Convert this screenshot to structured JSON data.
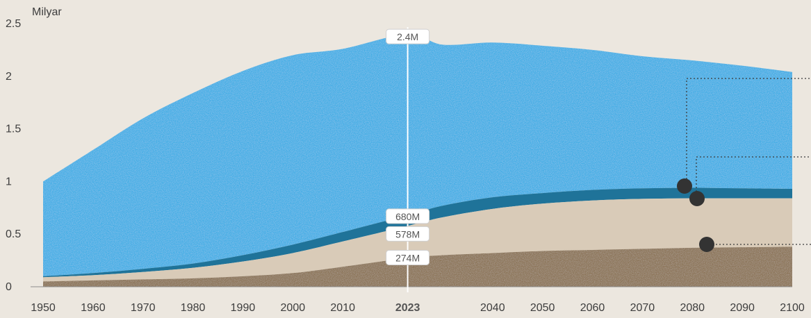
{
  "chart_data": {
    "type": "area",
    "ylabel": "Milyar",
    "ylim": [
      0,
      2.5
    ],
    "xlim": [
      1950,
      2100
    ],
    "grid": false,
    "y_ticks": [
      "0",
      "0.5",
      "1",
      "1.5",
      "2",
      "2.5"
    ],
    "x_ticks": [
      "1950",
      "1960",
      "1970",
      "1980",
      "1990",
      "2000",
      "2010",
      "2023",
      "2040",
      "2050",
      "2060",
      "2070",
      "2080",
      "2090",
      "2100"
    ],
    "highlight_year": "2023",
    "annotations": [
      "2.4M",
      "680M",
      "578M",
      "274M"
    ],
    "x": [
      1950,
      1960,
      1970,
      1980,
      1990,
      2000,
      2010,
      2023,
      2030,
      2040,
      2050,
      2060,
      2070,
      2080,
      2090,
      2100
    ],
    "series": [
      {
        "values": [
          0.05,
          0.06,
          0.07,
          0.08,
          0.1,
          0.13,
          0.19,
          0.274,
          0.3,
          0.32,
          0.34,
          0.35,
          0.36,
          0.37,
          0.375,
          0.38
        ],
        "color": "#8c7558"
      },
      {
        "values": [
          0.09,
          0.11,
          0.14,
          0.18,
          0.24,
          0.32,
          0.43,
          0.578,
          0.66,
          0.74,
          0.79,
          0.82,
          0.835,
          0.84,
          0.84,
          0.84
        ],
        "color": "#d9cbb8"
      },
      {
        "values": [
          0.1,
          0.13,
          0.17,
          0.22,
          0.3,
          0.4,
          0.52,
          0.68,
          0.77,
          0.85,
          0.89,
          0.92,
          0.935,
          0.94,
          0.935,
          0.93
        ],
        "color": "#1f7399"
      },
      {
        "values": [
          1.0,
          1.3,
          1.6,
          1.84,
          2.05,
          2.2,
          2.26,
          2.4,
          2.3,
          2.32,
          2.29,
          2.25,
          2.19,
          2.15,
          2.1,
          2.04
        ],
        "color": "#45aee5"
      }
    ]
  }
}
